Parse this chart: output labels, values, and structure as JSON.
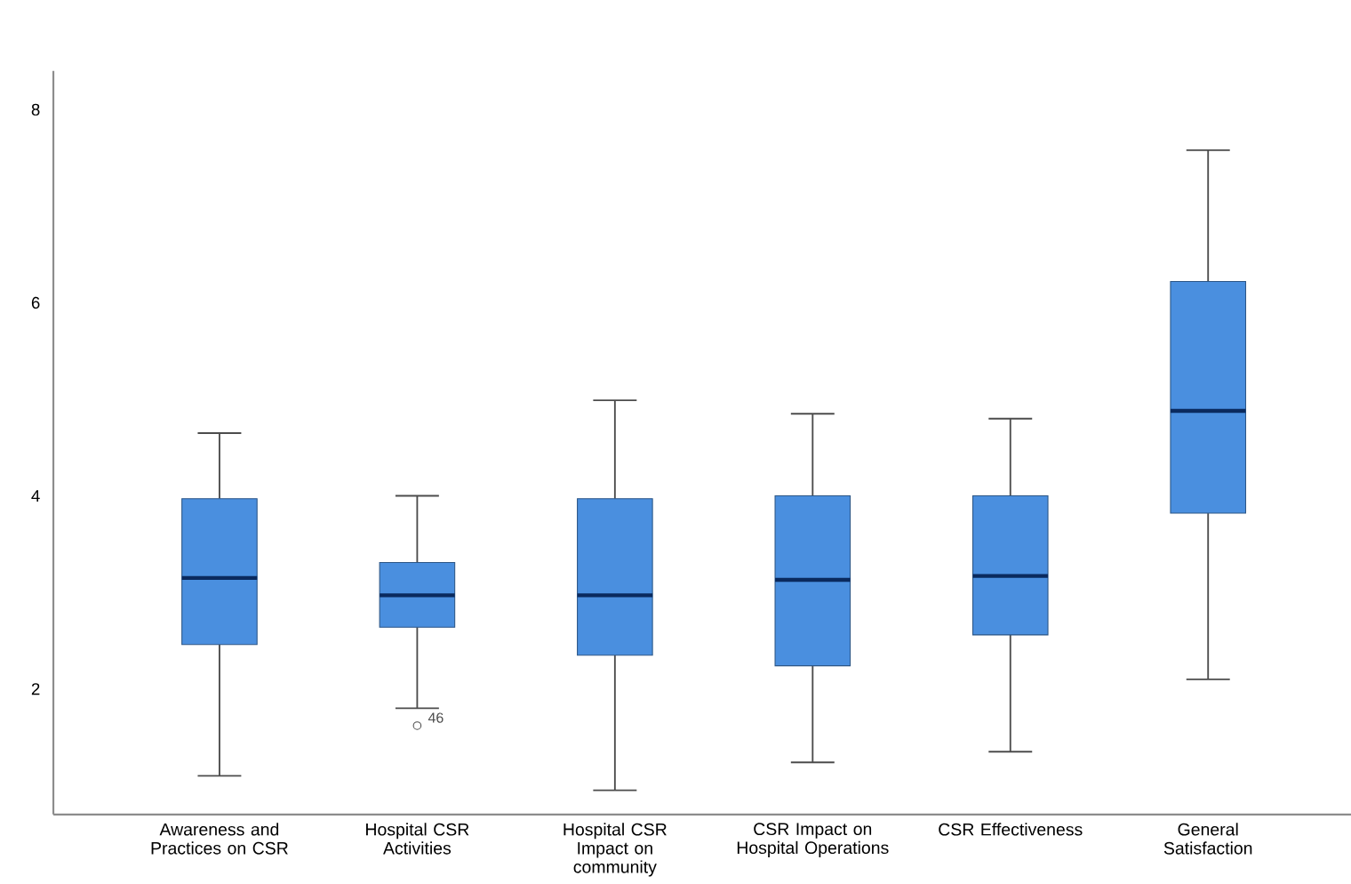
{
  "chart_data": {
    "type": "box",
    "categories": [
      "Awareness and Practices on CSR",
      "Hospital CSR Activities",
      "Hospital CSR Impact on community",
      "CSR Impact on Hospital Operations",
      "CSR Effectiveness",
      "General Satisfaction"
    ],
    "boxes": [
      {
        "low": 1.1,
        "q1": 2.46,
        "median": 3.15,
        "q3": 3.97,
        "high": 4.65
      },
      {
        "low": 1.8,
        "q1": 2.64,
        "median": 2.97,
        "q3": 3.31,
        "high": 4.0,
        "outliers": [
          1.62
        ]
      },
      {
        "low": 0.95,
        "q1": 2.35,
        "median": 2.97,
        "q3": 3.97,
        "high": 4.99
      },
      {
        "low": 1.24,
        "q1": 2.24,
        "median": 3.13,
        "q3": 4.0,
        "high": 4.85
      },
      {
        "low": 1.35,
        "q1": 2.56,
        "median": 3.17,
        "q3": 4.0,
        "high": 4.8
      },
      {
        "low": 2.1,
        "q1": 3.82,
        "median": 4.88,
        "q3": 6.22,
        "high": 7.58
      }
    ],
    "color": "#4a8fdf",
    "ylim": [
      0.7,
      8.4
    ],
    "yticks": [
      2,
      4,
      6,
      8
    ],
    "annotations": [
      "46"
    ],
    "grid": false
  }
}
